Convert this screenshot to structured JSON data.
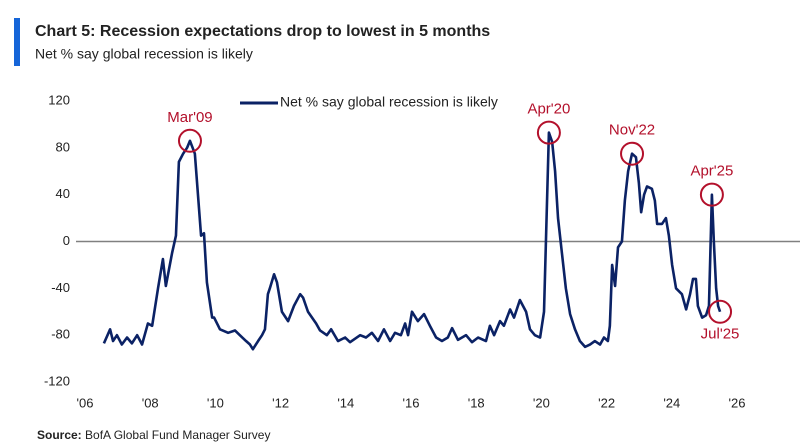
{
  "chart_data": {
    "type": "line",
    "title": "Chart 5: Recession expectations drop to lowest in 5 months",
    "subtitle": "Net % say global recession is likely",
    "source_label": "Source:",
    "source": "BofA Global Fund Manager Survey",
    "xlim": [
      2006,
      2026
    ],
    "xticks": [
      {
        "value": 2006,
        "label": "'06"
      },
      {
        "value": 2008,
        "label": "'08"
      },
      {
        "value": 2010,
        "label": "'10"
      },
      {
        "value": 2012,
        "label": "'12"
      },
      {
        "value": 2014,
        "label": "'14"
      },
      {
        "value": 2016,
        "label": "'16"
      },
      {
        "value": 2018,
        "label": "'18"
      },
      {
        "value": 2020,
        "label": "'20"
      },
      {
        "value": 2022,
        "label": "'22"
      },
      {
        "value": 2024,
        "label": "'24"
      },
      {
        "value": 2026,
        "label": "'26"
      }
    ],
    "ylim": [
      -120,
      120
    ],
    "yticks": [
      120,
      80,
      40,
      0,
      -40,
      -80,
      -120
    ],
    "x": [
      2006.58,
      2006.77,
      2006.86,
      2006.98,
      2007.13,
      2007.29,
      2007.44,
      2007.6,
      2007.75,
      2007.93,
      2008.06,
      2008.24,
      2008.39,
      2008.48,
      2008.67,
      2008.79,
      2008.88,
      2009.01,
      2009.13,
      2009.22,
      2009.37,
      2009.56,
      2009.65,
      2009.74,
      2009.9,
      2009.96,
      2010.14,
      2010.39,
      2010.6,
      2010.75,
      2010.94,
      2011.06,
      2011.15,
      2011.31,
      2011.43,
      2011.52,
      2011.61,
      2011.67,
      2011.8,
      2011.89,
      2012.04,
      2012.23,
      2012.41,
      2012.6,
      2012.69,
      2012.84,
      2013.09,
      2013.21,
      2013.42,
      2013.55,
      2013.76,
      2013.98,
      2014.13,
      2014.44,
      2014.62,
      2014.8,
      2014.99,
      2015.17,
      2015.36,
      2015.51,
      2015.69,
      2015.82,
      2015.91,
      2016.03,
      2016.21,
      2016.4,
      2016.58,
      2016.77,
      2016.95,
      2017.13,
      2017.26,
      2017.44,
      2017.69,
      2017.87,
      2018.06,
      2018.3,
      2018.42,
      2018.55,
      2018.73,
      2018.85,
      2019.04,
      2019.16,
      2019.34,
      2019.53,
      2019.65,
      2019.8,
      2019.96,
      2020.08,
      2020.23,
      2020.33,
      2020.42,
      2020.51,
      2020.63,
      2020.75,
      2020.88,
      2021.03,
      2021.18,
      2021.34,
      2021.49,
      2021.64,
      2021.8,
      2021.92,
      2022.04,
      2022.1,
      2022.17,
      2022.26,
      2022.35,
      2022.47,
      2022.56,
      2022.66,
      2022.78,
      2022.9,
      2022.99,
      2023.06,
      2023.15,
      2023.24,
      2023.39,
      2023.48,
      2023.55,
      2023.7,
      2023.82,
      2023.91,
      2024.01,
      2024.13,
      2024.31,
      2024.44,
      2024.56,
      2024.65,
      2024.74,
      2024.8,
      2024.93,
      2025.05,
      2025.14,
      2025.23,
      2025.29,
      2025.36,
      2025.42,
      2025.48
    ],
    "series": [
      {
        "name": "Net % say global recession is likely",
        "color": "#0b2265",
        "values": [
          -87,
          -75,
          -85,
          -80,
          -88,
          -82,
          -87,
          -80,
          -88,
          -70,
          -72,
          -40,
          -15,
          -38,
          -10,
          5,
          68,
          75,
          80,
          86,
          75,
          5,
          7,
          -35,
          -65,
          -65,
          -75,
          -78,
          -76,
          -80,
          -85,
          -88,
          -92,
          -85,
          -80,
          -75,
          -45,
          -40,
          -28,
          -35,
          -60,
          -68,
          -55,
          -45,
          -48,
          -60,
          -70,
          -76,
          -80,
          -75,
          -85,
          -82,
          -86,
          -80,
          -82,
          -78,
          -85,
          -75,
          -85,
          -78,
          -80,
          -70,
          -80,
          -60,
          -68,
          -62,
          -72,
          -82,
          -85,
          -82,
          -74,
          -84,
          -80,
          -86,
          -82,
          -85,
          -72,
          -80,
          -68,
          -72,
          -58,
          -65,
          -50,
          -60,
          -75,
          -80,
          -82,
          -60,
          93,
          85,
          60,
          20,
          -10,
          -40,
          -62,
          -75,
          -85,
          -90,
          -88,
          -85,
          -88,
          -82,
          -85,
          -72,
          -20,
          -38,
          -5,
          0,
          35,
          60,
          75,
          72,
          50,
          25,
          40,
          47,
          45,
          35,
          15,
          15,
          20,
          5,
          -20,
          -40,
          -45,
          -58,
          -45,
          -32,
          -32,
          -55,
          -65,
          -63,
          -55,
          40,
          0,
          -40,
          -55,
          -60
        ]
      }
    ],
    "annotations": [
      {
        "label": "Mar'09",
        "x": 2009.22,
        "y": 86
      },
      {
        "label": "Apr'20",
        "x": 2020.23,
        "y": 93
      },
      {
        "label": "Nov'22",
        "x": 2022.78,
        "y": 75
      },
      {
        "label": "Apr'25",
        "x": 2025.23,
        "y": 40
      },
      {
        "label": "Jul'25",
        "x": 2025.48,
        "y": -60
      }
    ],
    "annotation_color": "#b3102b"
  }
}
